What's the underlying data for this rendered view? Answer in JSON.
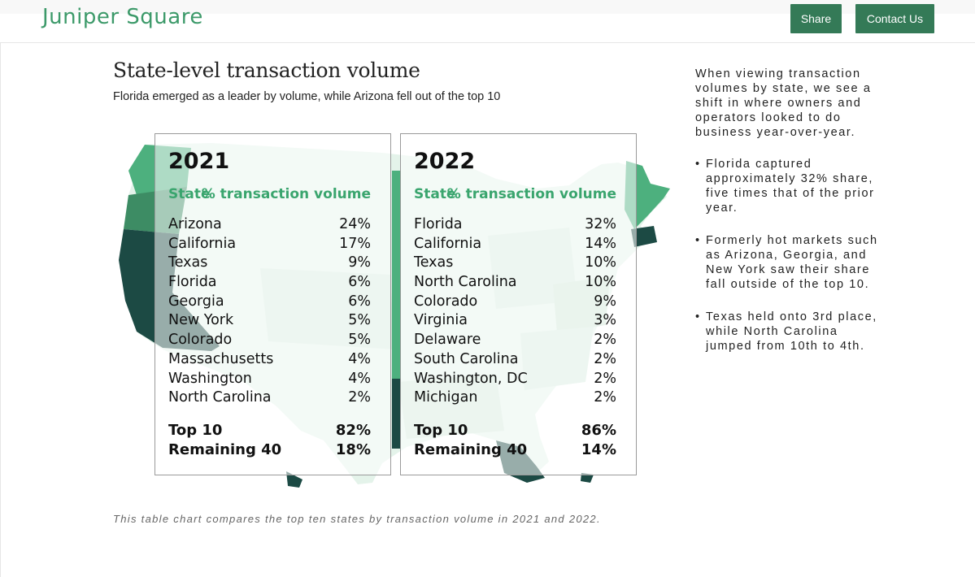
{
  "header": {
    "logo": "Juniper Square",
    "share_label": "Share",
    "contact_label": "Contact Us"
  },
  "section": {
    "title": "State-level transaction volume",
    "subtitle": "Florida emerged as a leader by volume, while Arizona fell out of the top 10",
    "caption": "This table chart compares the top ten states by transaction volume in 2021 and 2022."
  },
  "colors": {
    "brand": "#3d9a6a",
    "button": "#347a57",
    "map_light": "#e4f3ea",
    "map_mid": "#4db07e",
    "map_dark": "#1c4a44"
  },
  "chart_data": {
    "type": "table",
    "columns": [
      "State",
      "% transaction volume"
    ],
    "tables": [
      {
        "year": "2021",
        "rows": [
          {
            "state": "Arizona",
            "value": "24%"
          },
          {
            "state": "California",
            "value": "17%"
          },
          {
            "state": "Texas",
            "value": "9%"
          },
          {
            "state": "Florida",
            "value": "6%"
          },
          {
            "state": "Georgia",
            "value": "6%"
          },
          {
            "state": "New York",
            "value": "5%"
          },
          {
            "state": "Colorado",
            "value": "5%"
          },
          {
            "state": "Massachusetts",
            "value": "4%"
          },
          {
            "state": "Washington",
            "value": "4%"
          },
          {
            "state": "North Carolina",
            "value": "2%"
          }
        ],
        "totals": [
          {
            "label": "Top 10",
            "value": "82%"
          },
          {
            "label": "Remaining 40",
            "value": "18%"
          }
        ]
      },
      {
        "year": "2022",
        "rows": [
          {
            "state": "Florida",
            "value": "32%"
          },
          {
            "state": "California",
            "value": "14%"
          },
          {
            "state": "Texas",
            "value": "10%"
          },
          {
            "state": "North Carolina",
            "value": "10%"
          },
          {
            "state": "Colorado",
            "value": "9%"
          },
          {
            "state": "Virginia",
            "value": "3%"
          },
          {
            "state": "Delaware",
            "value": "2%"
          },
          {
            "state": "South Carolina",
            "value": "2%"
          },
          {
            "state": "Washington, DC",
            "value": "2%"
          },
          {
            "state": "Michigan",
            "value": "2%"
          }
        ],
        "totals": [
          {
            "label": "Top 10",
            "value": "86%"
          },
          {
            "label": "Remaining 40",
            "value": "14%"
          }
        ]
      }
    ]
  },
  "sidebar": {
    "intro": "When viewing transaction volumes by state, we see a shift in where owners and operators looked to do business year-over-year.",
    "bullets": [
      "Florida captured approximately 32% share, five times that of the prior year.",
      "Formerly hot markets such as Arizona, Georgia, and New York saw their share fall outside of the top 10.",
      "Texas held onto 3rd place, while North Carolina jumped from 10th to 4th."
    ]
  }
}
